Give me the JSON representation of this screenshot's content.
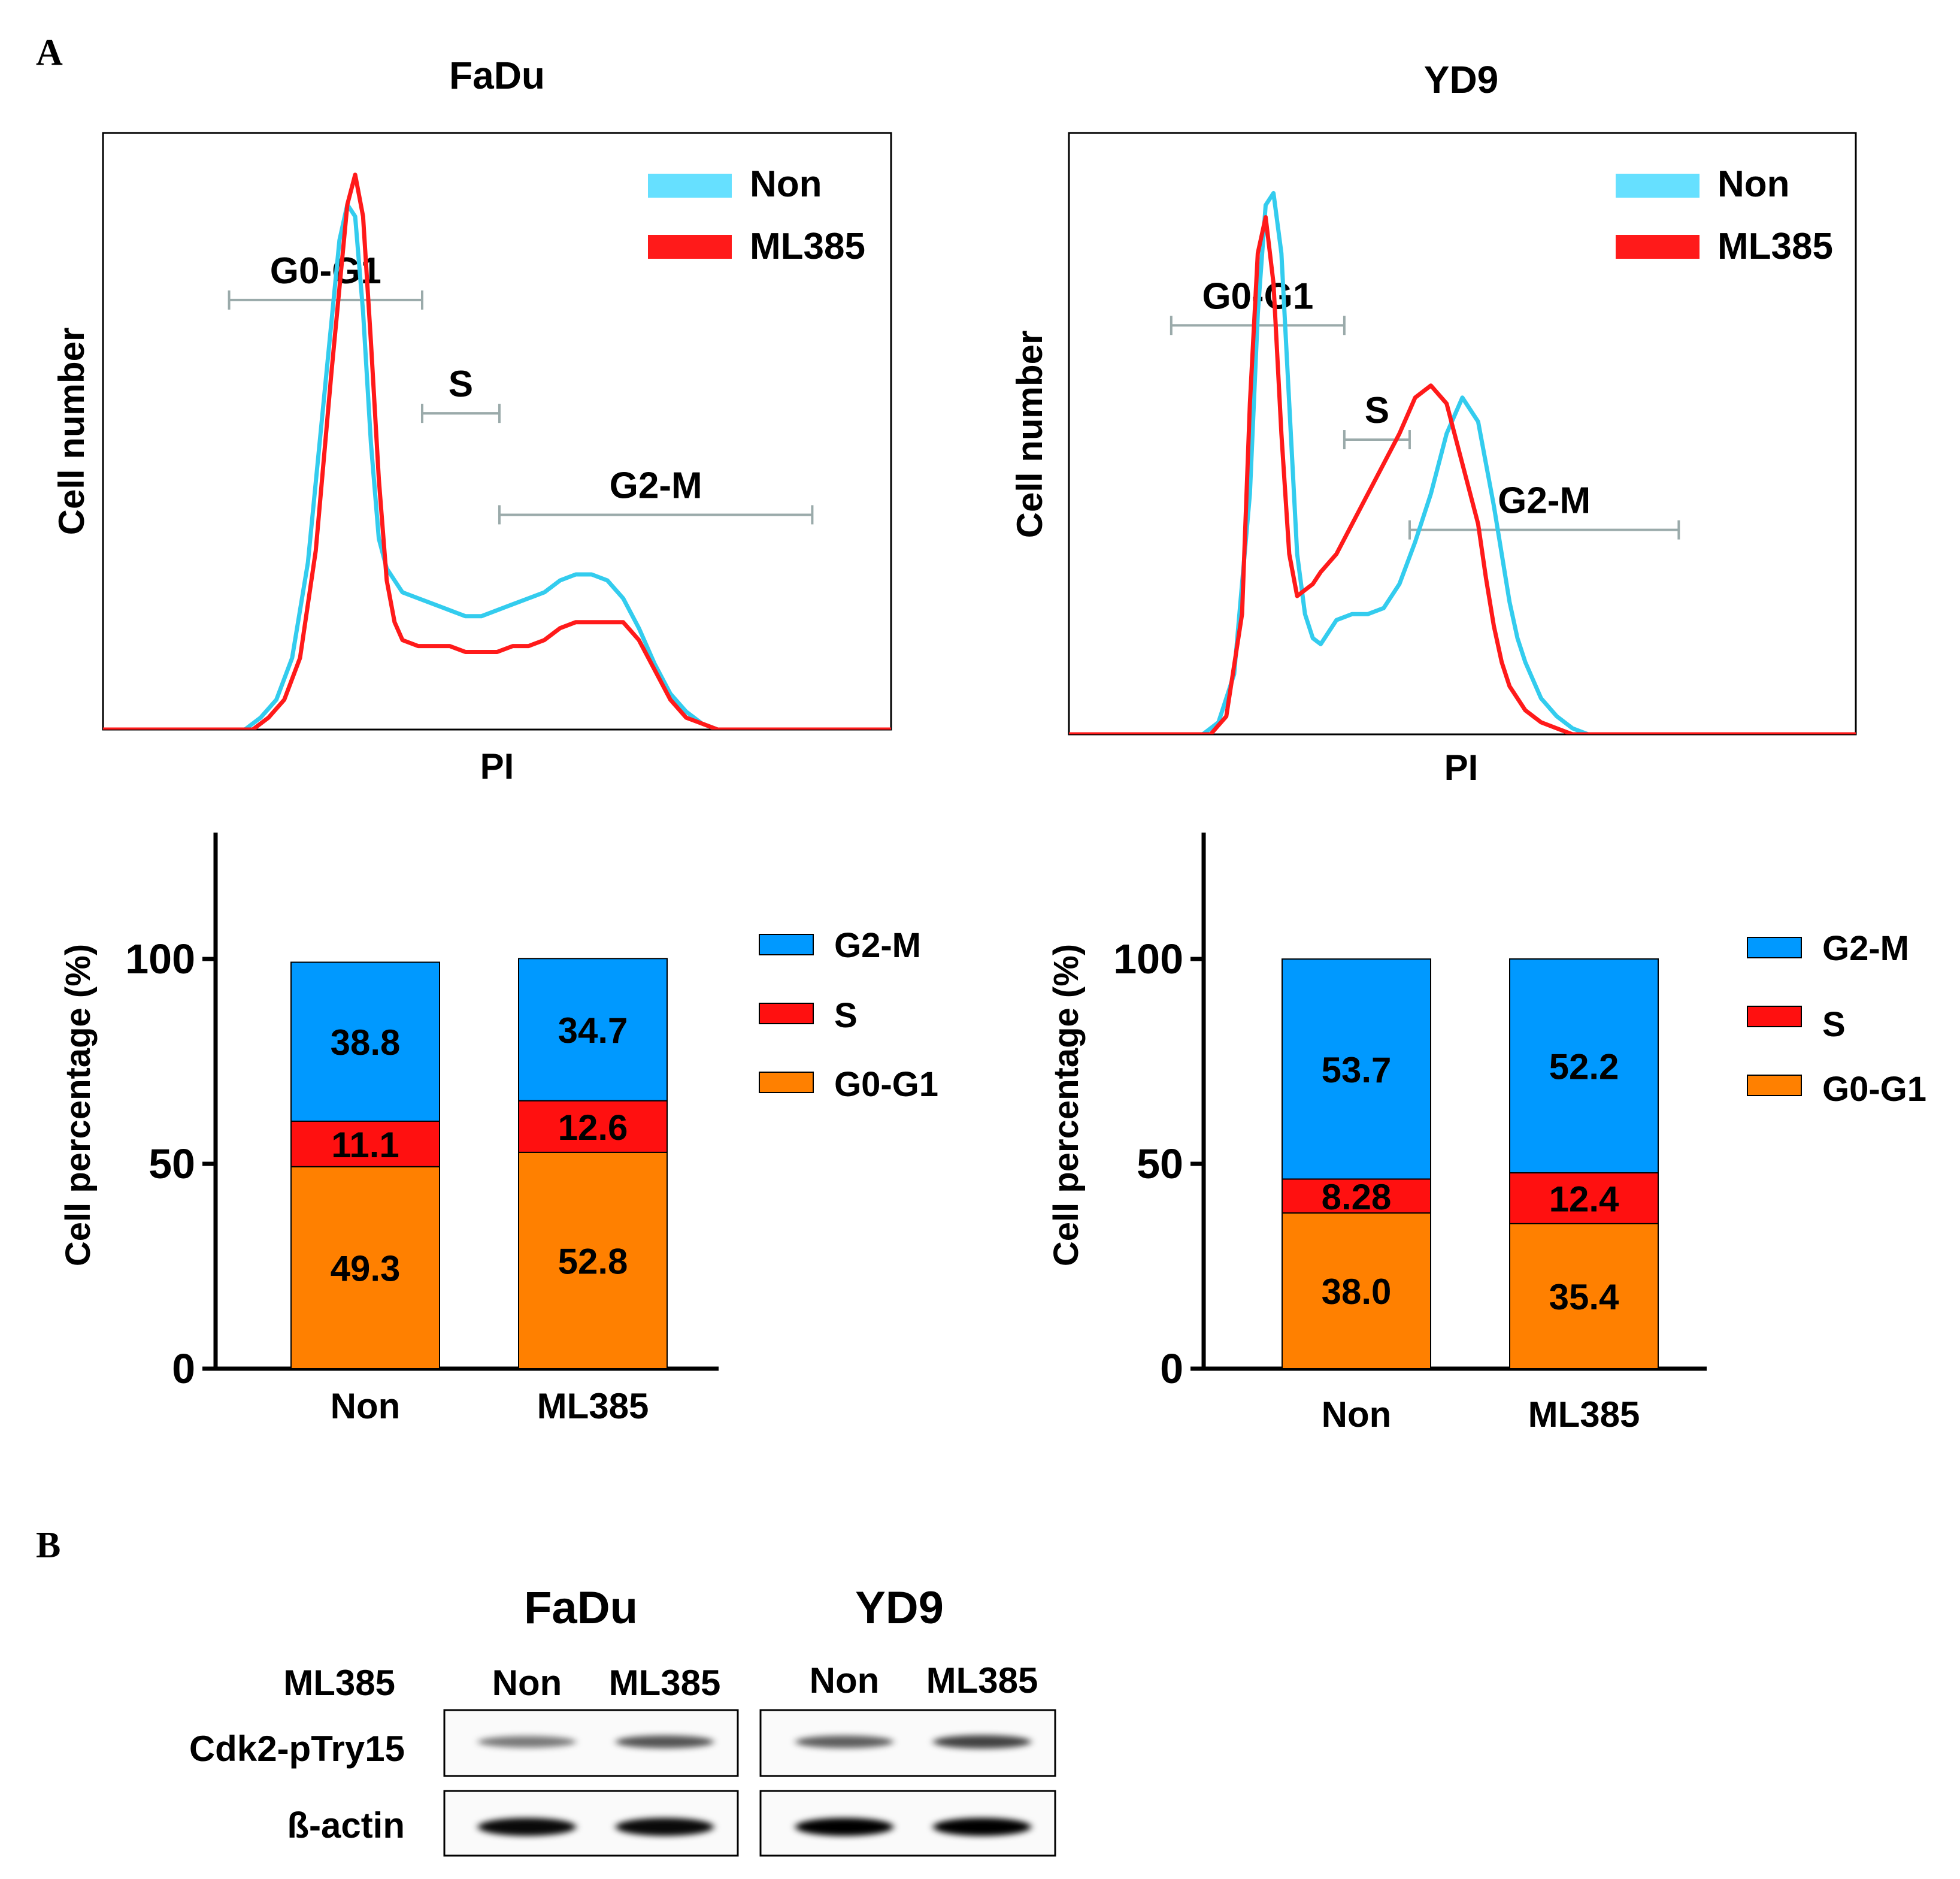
{
  "panel_labels": {
    "a": "A",
    "b": "B"
  },
  "colors": {
    "non": "#33CCEE",
    "non_legend": "#66E0FF",
    "ml385": "#FF1A1A",
    "g2m": "#0099FF",
    "s": "#FF1010",
    "g0g1": "#FF8000",
    "gate": "#9AAAAA",
    "band": "#000000"
  },
  "chart_data": [
    {
      "type": "line",
      "id": "fadu_histogram",
      "title": "FaDu",
      "xlabel": "PI",
      "ylabel": "Cell number",
      "xlim": [
        0,
        100
      ],
      "ylim": [
        0,
        100
      ],
      "legend": [
        "Non",
        "ML385"
      ],
      "series": [
        {
          "name": "Non",
          "x": [
            0,
            18,
            20,
            22,
            24,
            26,
            28,
            30,
            31,
            32,
            33,
            34,
            35,
            36,
            37,
            38,
            40,
            42,
            44,
            46,
            48,
            50,
            52,
            54,
            56,
            58,
            60,
            62,
            64,
            66,
            68,
            70,
            72,
            74,
            76,
            78,
            80,
            85,
            100
          ],
          "y": [
            0,
            0,
            2,
            5,
            12,
            28,
            55,
            82,
            88,
            86,
            70,
            48,
            32,
            27,
            25,
            23,
            22,
            21,
            20,
            19,
            19,
            20,
            21,
            22,
            23,
            25,
            26,
            26,
            25,
            22,
            17,
            11,
            6,
            3,
            1,
            0,
            0,
            0,
            0
          ]
        },
        {
          "name": "ML385",
          "x": [
            0,
            19,
            21,
            23,
            25,
            27,
            29,
            31,
            32,
            33,
            34,
            35,
            36,
            37,
            38,
            40,
            42,
            44,
            46,
            48,
            50,
            52,
            54,
            56,
            58,
            60,
            62,
            64,
            66,
            68,
            70,
            72,
            74,
            76,
            78,
            80,
            85,
            100
          ],
          "y": [
            0,
            0,
            2,
            5,
            12,
            30,
            60,
            88,
            93,
            86,
            65,
            42,
            25,
            18,
            15,
            14,
            14,
            14,
            13,
            13,
            13,
            14,
            14,
            15,
            17,
            18,
            18,
            18,
            18,
            15,
            10,
            5,
            2,
            1,
            0,
            0,
            0,
            0
          ]
        }
      ],
      "gates": [
        {
          "label": "G0-G1",
          "x0": 16,
          "x1": 40.5,
          "y": 72
        },
        {
          "label": "S",
          "x0": 40.5,
          "x1": 50.3,
          "y": 53
        },
        {
          "label": "G2-M",
          "x0": 50.3,
          "x1": 90,
          "y": 36
        }
      ]
    },
    {
      "type": "line",
      "id": "yd9_histogram",
      "title": "YD9",
      "xlabel": "PI",
      "ylabel": "Cell number",
      "xlim": [
        0,
        100
      ],
      "ylim": [
        0,
        100
      ],
      "legend": [
        "Non",
        "ML385"
      ],
      "series": [
        {
          "name": "Non",
          "x": [
            0,
            17,
            19,
            21,
            23,
            24,
            25,
            26,
            27,
            28,
            29,
            30,
            31,
            32,
            33,
            34,
            36,
            38,
            40,
            42,
            44,
            46,
            48,
            50,
            52,
            54,
            55,
            56,
            57,
            58,
            60,
            62,
            64,
            66,
            68,
            70,
            72,
            74,
            76,
            100
          ],
          "y": [
            0,
            0,
            2,
            10,
            40,
            70,
            88,
            90,
            80,
            55,
            30,
            20,
            16,
            15,
            17,
            19,
            20,
            20,
            21,
            25,
            32,
            40,
            50,
            56,
            52,
            38,
            30,
            22,
            16,
            12,
            6,
            3,
            1,
            0,
            0,
            0,
            0,
            0,
            0,
            0
          ]
        },
        {
          "name": "ML385",
          "x": [
            0,
            18,
            20,
            22,
            23,
            24,
            25,
            26,
            27,
            28,
            29,
            30,
            31,
            32,
            34,
            36,
            38,
            40,
            42,
            44,
            46,
            48,
            50,
            52,
            53,
            54,
            55,
            56,
            58,
            60,
            62,
            64,
            66,
            100
          ],
          "y": [
            0,
            0,
            3,
            20,
            55,
            80,
            86,
            75,
            50,
            30,
            23,
            24,
            25,
            27,
            30,
            35,
            40,
            45,
            50,
            56,
            58,
            55,
            45,
            35,
            26,
            18,
            12,
            8,
            4,
            2,
            1,
            0,
            0,
            0
          ]
        }
      ],
      "gates": [
        {
          "label": "G0-G1",
          "x0": 13,
          "x1": 35,
          "y": 68
        },
        {
          "label": "S",
          "x0": 35,
          "x1": 43.3,
          "y": 49
        },
        {
          "label": "G2-M",
          "x0": 43.3,
          "x1": 77.5,
          "y": 34
        }
      ]
    },
    {
      "type": "bar",
      "id": "fadu_stacked",
      "stacked": true,
      "categories": [
        "Non",
        "ML385"
      ],
      "ylabel": "Cell percentage (%)",
      "ylim": [
        0,
        130
      ],
      "yticks": [
        "0",
        "50",
        "100"
      ],
      "legend": [
        "G2-M",
        "S",
        "G0-G1"
      ],
      "series": [
        {
          "name": "G0-G1",
          "values": [
            49.3,
            52.8
          ],
          "labels": [
            "49.3",
            "52.8"
          ]
        },
        {
          "name": "S",
          "values": [
            11.1,
            12.6
          ],
          "labels": [
            "11.1",
            "12.6"
          ]
        },
        {
          "name": "G2-M",
          "values": [
            38.8,
            34.7
          ],
          "labels": [
            "38.8",
            "34.7"
          ]
        }
      ]
    },
    {
      "type": "bar",
      "id": "yd9_stacked",
      "stacked": true,
      "categories": [
        "Non",
        "ML385"
      ],
      "ylabel": "Cell percentage (%)",
      "ylim": [
        0,
        130
      ],
      "yticks": [
        "0",
        "50",
        "100"
      ],
      "legend": [
        "G2-M",
        "S",
        "G0-G1"
      ],
      "series": [
        {
          "name": "G0-G1",
          "values": [
            38.0,
            35.4
          ],
          "labels": [
            "38.0",
            "35.4"
          ]
        },
        {
          "name": "S",
          "values": [
            8.28,
            12.4
          ],
          "labels": [
            "8.28",
            "12.4"
          ]
        },
        {
          "name": "G2-M",
          "values": [
            53.7,
            52.2
          ],
          "labels": [
            "53.7",
            "52.2"
          ]
        }
      ]
    }
  ],
  "western_blot": {
    "groups": [
      {
        "title": "FaDu",
        "lanes": [
          "Non",
          "ML385"
        ]
      },
      {
        "title": "YD9",
        "lanes": [
          "Non",
          "ML385"
        ]
      }
    ],
    "treatment_label": "ML385",
    "rows": [
      {
        "label": "Cdk2-pTry15",
        "intensity": [
          [
            0.35,
            0.55
          ],
          [
            0.5,
            0.65
          ]
        ]
      },
      {
        "label": "ß-actin",
        "intensity": [
          [
            0.95,
            0.95
          ],
          [
            1.0,
            1.0
          ]
        ]
      }
    ]
  }
}
